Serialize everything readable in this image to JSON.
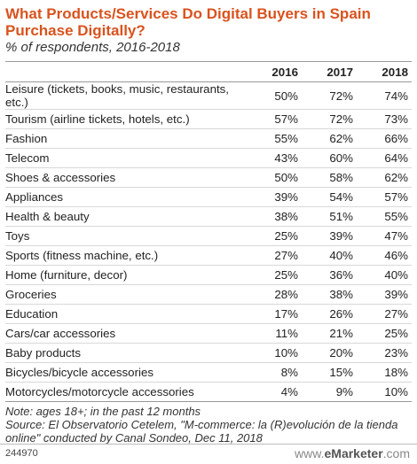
{
  "chart_data": {
    "type": "table",
    "title": "What Products/Services Do Digital Buyers in Spain Purchase Digitally?",
    "subtitle": "% of respondents, 2016-2018",
    "columns": [
      "2016",
      "2017",
      "2018"
    ],
    "rows": [
      {
        "category": "Leisure (tickets, books, music, restaurants, etc.)",
        "values": [
          "50%",
          "72%",
          "74%"
        ]
      },
      {
        "category": "Tourism (airline tickets, hotels, etc.)",
        "values": [
          "57%",
          "72%",
          "73%"
        ]
      },
      {
        "category": "Fashion",
        "values": [
          "55%",
          "62%",
          "66%"
        ]
      },
      {
        "category": "Telecom",
        "values": [
          "43%",
          "60%",
          "64%"
        ]
      },
      {
        "category": "Shoes & accessories",
        "values": [
          "50%",
          "58%",
          "62%"
        ]
      },
      {
        "category": "Appliances",
        "values": [
          "39%",
          "54%",
          "57%"
        ]
      },
      {
        "category": "Health & beauty",
        "values": [
          "38%",
          "51%",
          "55%"
        ]
      },
      {
        "category": "Toys",
        "values": [
          "25%",
          "39%",
          "47%"
        ]
      },
      {
        "category": "Sports (fitness machine, etc.)",
        "values": [
          "27%",
          "40%",
          "46%"
        ]
      },
      {
        "category": "Home (furniture, decor)",
        "values": [
          "25%",
          "36%",
          "40%"
        ]
      },
      {
        "category": "Groceries",
        "values": [
          "28%",
          "38%",
          "39%"
        ]
      },
      {
        "category": "Education",
        "values": [
          "17%",
          "26%",
          "27%"
        ]
      },
      {
        "category": "Cars/car accessories",
        "values": [
          "11%",
          "21%",
          "25%"
        ]
      },
      {
        "category": "Baby products",
        "values": [
          "10%",
          "20%",
          "23%"
        ]
      },
      {
        "category": "Bicycles/bicycle accessories",
        "values": [
          "8%",
          "15%",
          "18%"
        ]
      },
      {
        "category": "Motorcycles/motorcycle accessories",
        "values": [
          "4%",
          "9%",
          "10%"
        ]
      }
    ],
    "note": "Note: ages 18+; in the past 12 months",
    "source": "Source: El Observatorio Cetelem, \"M-commerce: la (R)evolución de la tienda online\" conducted by Canal Sondeo, Dec 11, 2018"
  },
  "footer": {
    "chart_id": "244970",
    "brand_prefix": "www.",
    "brand_name": "eMarketer",
    "brand_suffix": ".com"
  }
}
